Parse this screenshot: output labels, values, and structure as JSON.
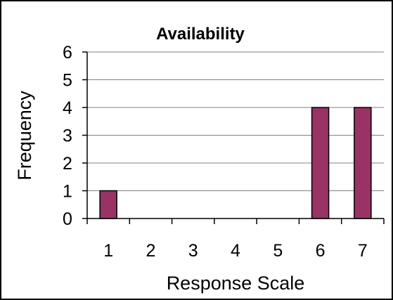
{
  "chart_data": {
    "type": "bar",
    "title": "Availability",
    "xlabel": "Response Scale",
    "ylabel": "Frequency",
    "categories": [
      "1",
      "2",
      "3",
      "4",
      "5",
      "6",
      "7"
    ],
    "values": [
      1,
      0,
      0,
      0,
      0,
      4,
      4
    ],
    "ylim": [
      0,
      6
    ],
    "yticks": [
      "0",
      "1",
      "2",
      "3",
      "4",
      "5",
      "6"
    ],
    "grid": true,
    "legend": "none",
    "bar_color": "#993366",
    "bar_edge_color": "#000000",
    "gridline_color": "#808080"
  }
}
